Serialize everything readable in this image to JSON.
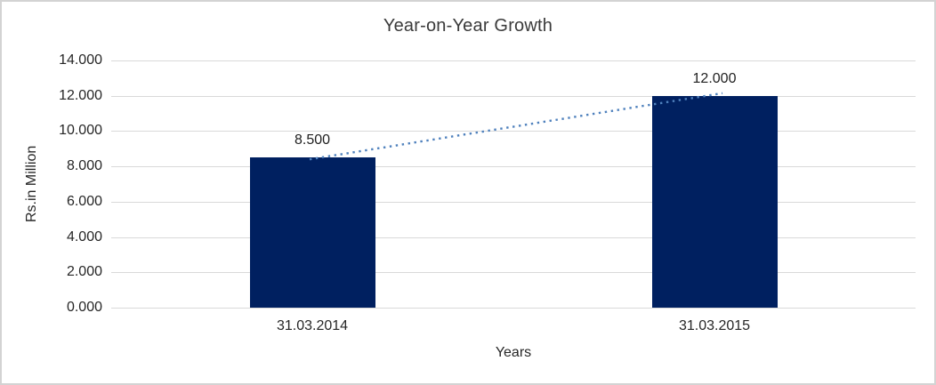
{
  "frame": {
    "background": "#ffffff",
    "border_color": "#d3d3d3"
  },
  "chart_data": {
    "type": "bar",
    "title": "Year-on-Year Growth",
    "xlabel": "Years",
    "ylabel": "Rs.in Million",
    "categories": [
      "31.03.2014",
      "31.03.2015"
    ],
    "values": [
      8500,
      12000
    ],
    "data_labels": [
      "8.500",
      "12.000"
    ],
    "y_ticks": [
      {
        "value": 14000,
        "label": "14.000"
      },
      {
        "value": 12000,
        "label": "12.000"
      },
      {
        "value": 10000,
        "label": "10.000"
      },
      {
        "value": 8000,
        "label": "8.000"
      },
      {
        "value": 6000,
        "label": "6.000"
      },
      {
        "value": 4000,
        "label": "4.000"
      },
      {
        "value": 2000,
        "label": "2.000"
      },
      {
        "value": 0,
        "label": "0.000"
      }
    ],
    "ylim": [
      0,
      14000
    ],
    "grid": "horizontal",
    "legend": "none",
    "trendline": {
      "type": "linear",
      "style": "dotted"
    },
    "colors": {
      "bar": "#002060",
      "trendline": "#4f81bd",
      "gridline": "#d9d9d9",
      "text": "#262626"
    }
  }
}
